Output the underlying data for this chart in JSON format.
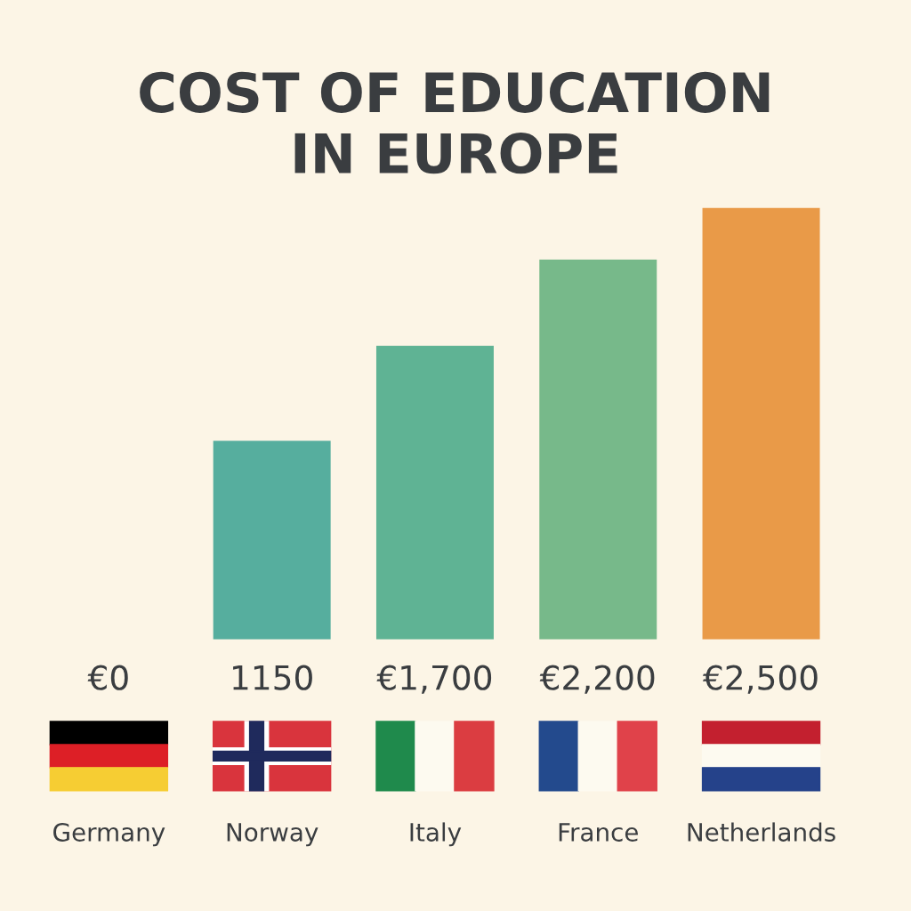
{
  "chart_data": {
    "type": "bar",
    "title": "COST OF EDUCATION\nIN EUROPE",
    "categories": [
      "Germany",
      "Norway",
      "Italy",
      "France",
      "Netherlands"
    ],
    "values": [
      0,
      1150,
      1700,
      2200,
      2500
    ],
    "colors": [
      "#56ae9e",
      "#56ae9e",
      "#5fb394",
      "#77b98a",
      "#e99a48"
    ],
    "value_labels": [
      "€0",
      "1150",
      "€1,700",
      "€2,200",
      "€2,500"
    ],
    "grid": false,
    "legend": false,
    "tick_labels": "x"
  }
}
